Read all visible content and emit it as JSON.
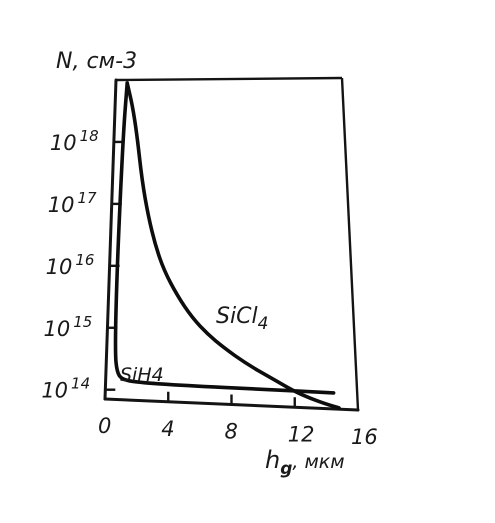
{
  "chart_data": {
    "type": "line",
    "ylabel": "N, см-3",
    "xlabel": "hg, мкм",
    "xlabel_main": "h",
    "xlabel_sub": "g",
    "xlabel_unit": ", мкм",
    "x_ticks": [
      "0",
      "4",
      "8",
      "12",
      "16"
    ],
    "x_tick_values": [
      0,
      4,
      8,
      12,
      16
    ],
    "y_ticks": [
      {
        "value": 14,
        "base": "10",
        "exp": "14"
      },
      {
        "value": 15,
        "base": "10",
        "exp": "15"
      },
      {
        "value": 16,
        "base": "10",
        "exp": "16"
      },
      {
        "value": 17,
        "base": "10",
        "exp": "17"
      },
      {
        "value": 18,
        "base": "10",
        "exp": "18"
      }
    ],
    "y_scale": "log",
    "xlim": [
      0,
      16
    ],
    "ylim_log10": [
      13.85,
      19.0
    ],
    "grid": false,
    "series": [
      {
        "name": "SiCl4",
        "x": [
          0.8,
          1.2,
          1.6,
          2.0,
          2.5,
          3.0,
          3.6,
          4.5,
          5.5,
          6.5,
          7.5,
          9.0,
          10.5,
          12.0,
          13.0,
          14.0,
          14.8
        ],
        "log10_y": [
          18.95,
          18.6,
          18.1,
          17.4,
          16.8,
          16.35,
          15.95,
          15.55,
          15.2,
          14.95,
          14.75,
          14.5,
          14.3,
          14.1,
          14.0,
          13.92,
          13.87
        ]
      },
      {
        "name": "SiH4",
        "x": [
          0.8,
          0.65,
          0.55,
          0.5,
          0.55,
          0.7,
          1.0,
          2.0,
          5.0,
          10.0,
          14.5
        ],
        "log10_y": [
          18.95,
          18.2,
          17.0,
          15.5,
          14.6,
          14.3,
          14.18,
          14.14,
          14.12,
          14.11,
          14.1
        ]
      }
    ],
    "labels": {
      "sicl4_main": "SiCl",
      "sicl4_sub": "4",
      "sih4": "SiH4"
    }
  }
}
